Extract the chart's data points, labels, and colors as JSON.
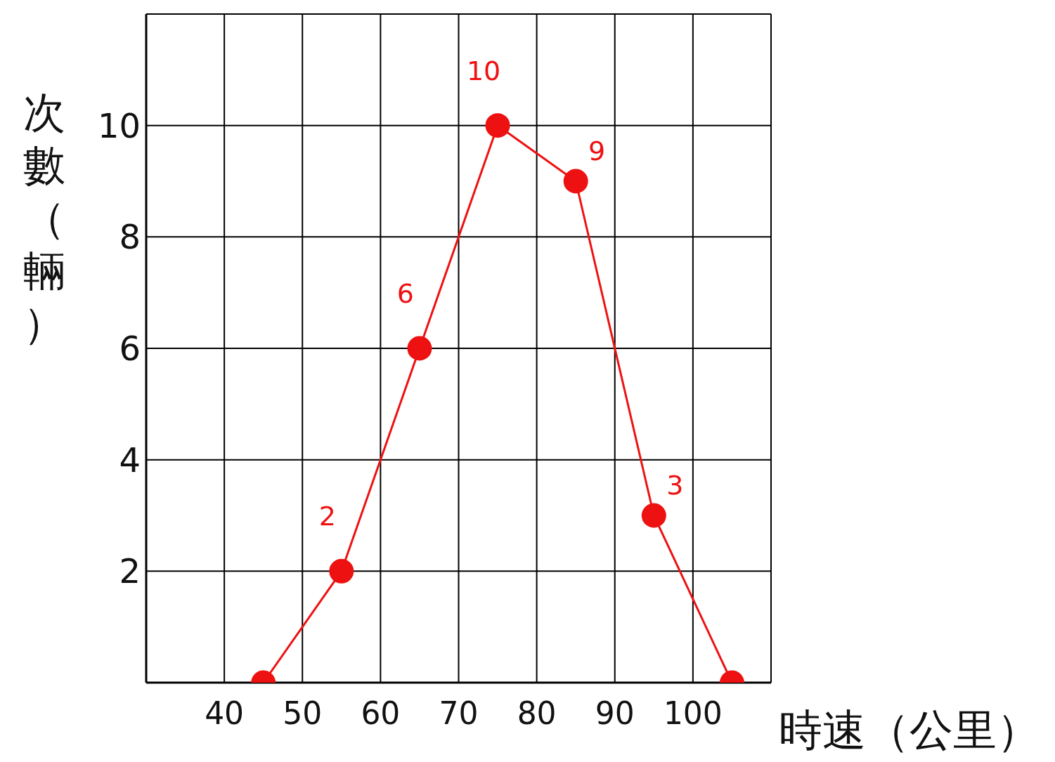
{
  "chart_data": {
    "type": "line",
    "xlabel": "時速（公里）",
    "ylabel": "次數（輛）",
    "x": [
      45,
      55,
      65,
      75,
      85,
      95,
      105
    ],
    "series": [
      {
        "color": "#ee1111",
        "values": [
          0,
          2,
          6,
          10,
          9,
          3,
          0
        ],
        "value_labels": [
          null,
          "2",
          "6",
          "10",
          "9",
          "3",
          null
        ]
      }
    ],
    "xlim": [
      30,
      110
    ],
    "xticks": [
      {
        "value": 30,
        "label": null
      },
      40,
      50,
      60,
      70,
      80,
      90,
      100,
      {
        "value": 110,
        "label": null
      }
    ],
    "ylim": [
      0,
      12
    ],
    "yticks": [
      {
        "value": 0,
        "label": null
      },
      2,
      4,
      6,
      8,
      10,
      {
        "value": 12,
        "label": null
      }
    ],
    "grid": true,
    "marker": "circle",
    "line_style": "solid"
  }
}
